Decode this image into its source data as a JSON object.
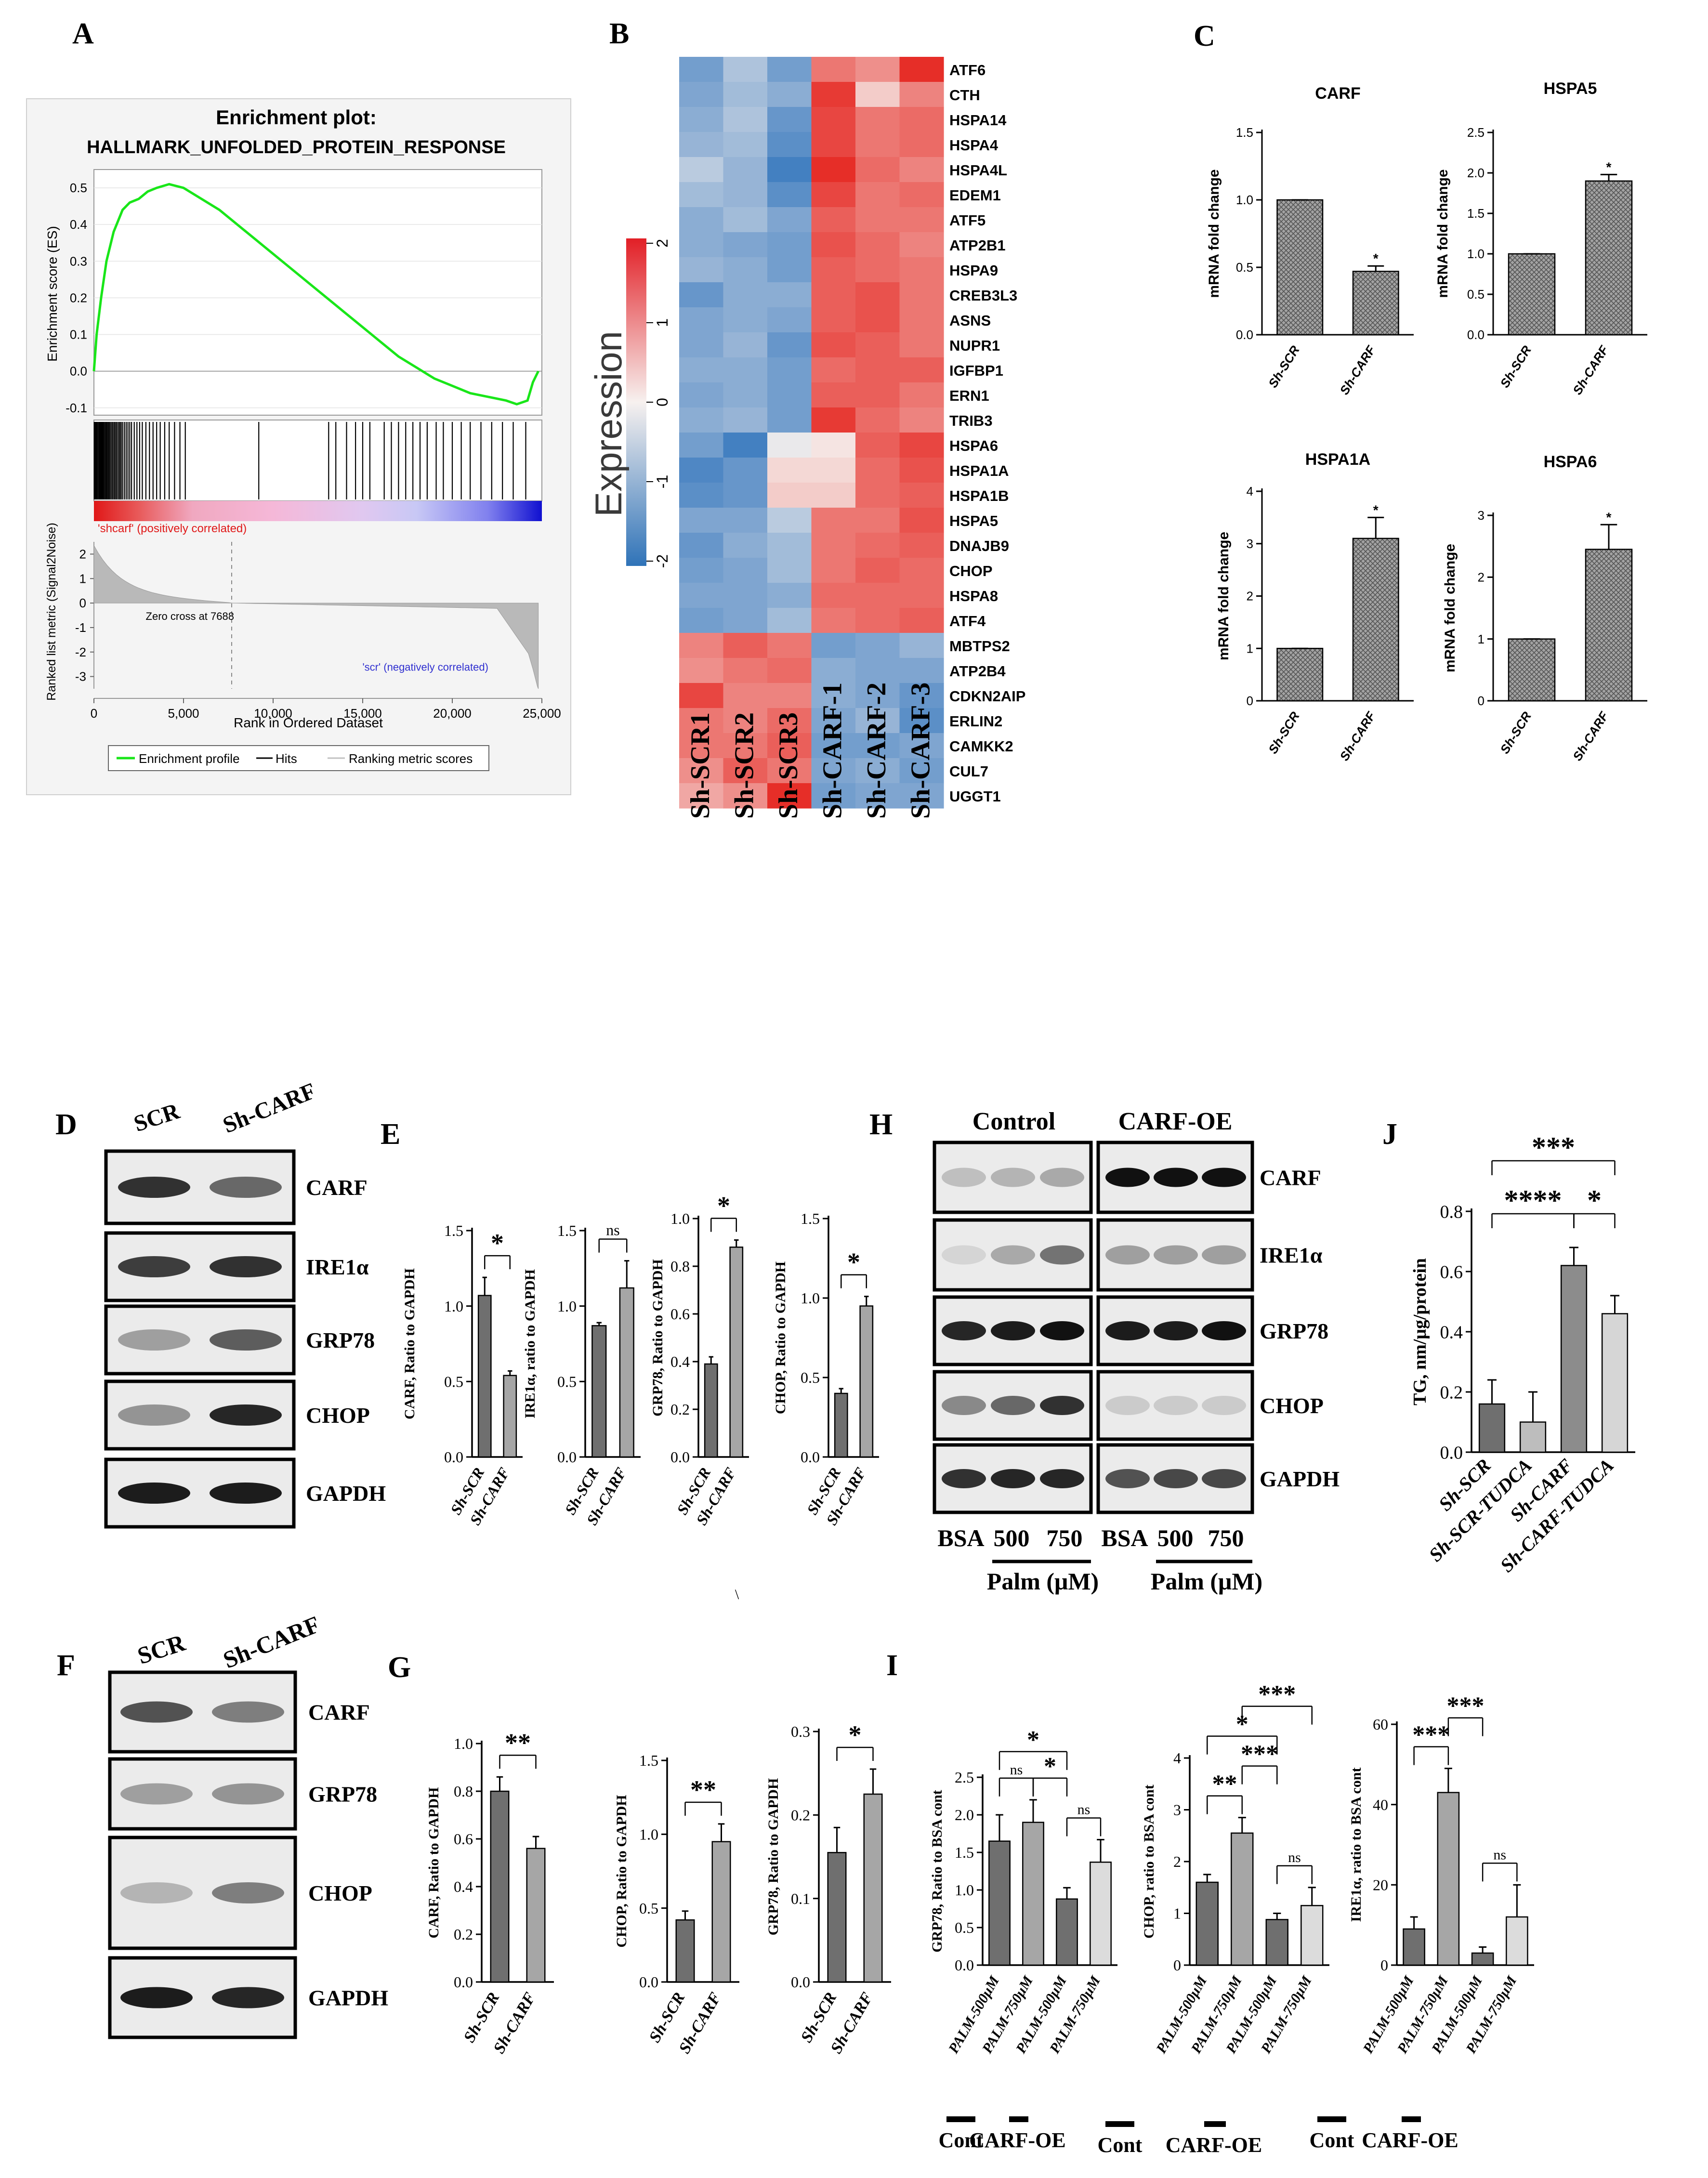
{
  "panel_letters": {
    "A": "A",
    "B": "B",
    "C": "C",
    "D": "D",
    "E": "E",
    "F": "F",
    "G": "G",
    "H": "H",
    "I": "I",
    "J": "J"
  },
  "colors": {
    "bar_dark": "#6b6b6b",
    "bar_mid": "#9a9a9a",
    "bar_light": "#d7d7d7",
    "gsea_line": "#19e619",
    "heat_red": "#e8332a",
    "heat_blue": "#3f7fc0",
    "heat_white": "#f6f0ee"
  },
  "chart_data": [
    {
      "panel": "A",
      "type": "line",
      "title": "Enrichment plot:",
      "subtitle": "HALLMARK_UNFOLDED_PROTEIN_RESPONSE",
      "ylabel": "Enrichment score (ES)",
      "ylabel2": "Ranked list metric (Signal2Noise)",
      "xlabel": "Rank in Ordered Dataset",
      "y_ticks": [
        "0.5",
        "0.4",
        "0.3",
        "0.2",
        "0.1",
        "0.0",
        "-0.1"
      ],
      "y2_ticks": [
        "2",
        "1",
        "0",
        "-1",
        "-2",
        "-3"
      ],
      "x_ticks": [
        "0",
        "5,000",
        "10,000",
        "15,000",
        "20,000",
        "25,000"
      ],
      "xlim": [
        0,
        25000
      ],
      "ylim": [
        -0.12,
        0.55
      ],
      "es_x": [
        0,
        150,
        400,
        700,
        1100,
        1600,
        2000,
        2500,
        3000,
        3500,
        4200,
        5000,
        6000,
        7000,
        8000,
        9000,
        10000,
        11000,
        12000,
        13000,
        14000,
        15000,
        16000,
        17000,
        18000,
        19000,
        20000,
        21000,
        22000,
        23000,
        23600,
        24200,
        24500,
        24800
      ],
      "es_y": [
        0,
        0.1,
        0.2,
        0.3,
        0.38,
        0.44,
        0.46,
        0.47,
        0.49,
        0.5,
        0.51,
        0.5,
        0.47,
        0.44,
        0.4,
        0.36,
        0.32,
        0.28,
        0.24,
        0.2,
        0.16,
        0.12,
        0.08,
        0.04,
        0.01,
        -0.02,
        -0.04,
        -0.06,
        -0.07,
        -0.08,
        -0.09,
        -0.08,
        -0.03,
        0.0
      ],
      "annotation_pos": "'shcarf' (positively correlated)",
      "annotation_neg": "'scr' (negatively correlated)",
      "annotation_zero": "Zero cross at 7688",
      "legend": [
        "Enrichment profile",
        "Hits",
        "Ranking metric scores"
      ]
    },
    {
      "panel": "B",
      "type": "heatmap",
      "columns": [
        "Sh-SCR1",
        "Sh-SCR2",
        "Sh-SCR3",
        "Sh-CARF-1",
        "Sh-CARF-2",
        "Sh-CARF-3"
      ],
      "rows": [
        "ATF6",
        "CTH",
        "HSPA14",
        "HSPA4",
        "HSPA4L",
        "EDEM1",
        "ATF5",
        "ATP2B1",
        "HSPA9",
        "CREB3L3",
        "ASNS",
        "NUPR1",
        "IGFBP1",
        "ERN1",
        "TRIB3",
        "HSPA6",
        "HSPA1A",
        "HSPA1B",
        "HSPA5",
        "DNAJB9",
        "CHOP",
        "HSPA8",
        "ATF4",
        "MBTPS2",
        "ATP2B4",
        "CDKN2AIP",
        "ERLIN2",
        "CAMKK2",
        "CUL7",
        "UGGT1"
      ],
      "legend_title": "Expression",
      "legend_ticks": [
        "2",
        "1",
        "0",
        "-1",
        "-2"
      ],
      "values": [
        [
          -1.1,
          -0.6,
          -1.1,
          1.0,
          0.8,
          1.6
        ],
        [
          -1.0,
          -0.7,
          -0.9,
          1.5,
          0.3,
          0.9
        ],
        [
          -0.9,
          -0.6,
          -1.2,
          1.4,
          1.0,
          1.1
        ],
        [
          -0.8,
          -0.7,
          -1.3,
          1.4,
          1.0,
          1.1
        ],
        [
          -0.5,
          -0.8,
          -1.5,
          1.6,
          1.1,
          0.9
        ],
        [
          -0.7,
          -0.8,
          -1.3,
          1.4,
          1.0,
          1.1
        ],
        [
          -0.9,
          -0.7,
          -1.0,
          1.2,
          1.0,
          1.0
        ],
        [
          -0.9,
          -1.0,
          -1.1,
          1.3,
          1.1,
          0.9
        ],
        [
          -0.8,
          -0.9,
          -1.1,
          1.2,
          1.1,
          1.0
        ],
        [
          -1.2,
          -0.9,
          -0.9,
          1.2,
          1.3,
          1.0
        ],
        [
          -1.0,
          -0.9,
          -1.0,
          1.2,
          1.3,
          1.0
        ],
        [
          -1.0,
          -0.8,
          -1.2,
          1.3,
          1.2,
          1.0
        ],
        [
          -0.9,
          -0.9,
          -1.1,
          1.1,
          1.2,
          1.2
        ],
        [
          -1.0,
          -0.9,
          -1.1,
          1.2,
          1.2,
          1.0
        ],
        [
          -0.9,
          -0.8,
          -1.1,
          1.5,
          1.1,
          0.9
        ],
        [
          -1.1,
          -1.5,
          -0.1,
          0.1,
          1.2,
          1.4
        ],
        [
          -1.4,
          -1.2,
          0.2,
          0.2,
          1.1,
          1.3
        ],
        [
          -1.3,
          -1.2,
          0.3,
          0.3,
          1.1,
          1.2
        ],
        [
          -1.0,
          -1.0,
          -0.5,
          1.0,
          1.0,
          1.3
        ],
        [
          -1.2,
          -0.9,
          -0.7,
          1.0,
          1.1,
          1.2
        ],
        [
          -1.1,
          -1.0,
          -0.7,
          1.0,
          1.2,
          1.1
        ],
        [
          -1.0,
          -1.0,
          -0.9,
          1.1,
          1.1,
          1.1
        ],
        [
          -1.1,
          -1.0,
          -0.7,
          1.0,
          1.1,
          1.2
        ],
        [
          0.9,
          1.2,
          1.0,
          -1.1,
          -1.0,
          -0.8
        ],
        [
          0.8,
          1.0,
          1.1,
          -0.9,
          -1.0,
          -1.0
        ],
        [
          1.4,
          0.9,
          0.9,
          -0.9,
          -1.0,
          -1.2
        ],
        [
          1.0,
          0.9,
          1.1,
          -1.0,
          -0.8,
          -1.3
        ],
        [
          1.0,
          1.0,
          1.2,
          -1.1,
          -1.1,
          -1.0
        ],
        [
          0.8,
          1.2,
          1.0,
          -1.0,
          -0.9,
          -1.1
        ],
        [
          0.6,
          0.8,
          1.6,
          -1.1,
          -1.0,
          -1.0
        ]
      ]
    },
    {
      "panel": "C",
      "type": "bar",
      "title": "CARF",
      "ylabel": "mRNA fold change",
      "categories": [
        "Sh-SCR",
        "Sh-CARF"
      ],
      "values": [
        1.0,
        0.47
      ],
      "errors": [
        0.0,
        0.04
      ],
      "ylim": [
        0,
        1.5
      ],
      "yticks": [
        "0.0",
        "0.5",
        "1.0",
        "1.5"
      ],
      "sig": [
        "",
        "*"
      ]
    },
    {
      "panel": "C",
      "type": "bar",
      "title": "HSPA5",
      "ylabel": "mRNA fold change",
      "categories": [
        "Sh-SCR",
        "Sh-CARF"
      ],
      "values": [
        1.0,
        1.9
      ],
      "errors": [
        0.0,
        0.08
      ],
      "ylim": [
        0,
        2.5
      ],
      "yticks": [
        "0.0",
        "0.5",
        "1.0",
        "1.5",
        "2.0",
        "2.5"
      ],
      "sig": [
        "",
        "*"
      ]
    },
    {
      "panel": "C",
      "type": "bar",
      "title": "HSPA1A",
      "ylabel": "mRNA fold change",
      "categories": [
        "Sh-SCR",
        "Sh-CARF"
      ],
      "values": [
        1.0,
        3.1
      ],
      "errors": [
        0.0,
        0.4
      ],
      "ylim": [
        0,
        4
      ],
      "yticks": [
        "0",
        "1",
        "2",
        "3",
        "4"
      ],
      "sig": [
        "",
        "*"
      ]
    },
    {
      "panel": "C",
      "type": "bar",
      "title": "HSPA6",
      "ylabel": "mRNA fold change",
      "categories": [
        "Sh-SCR",
        "Sh-CARF"
      ],
      "values": [
        1.0,
        2.45
      ],
      "errors": [
        0.0,
        0.4
      ],
      "ylim": [
        0,
        3
      ],
      "yticks": [
        "0",
        "1",
        "2",
        "3"
      ],
      "sig": [
        "",
        "*"
      ]
    },
    {
      "panel": "E",
      "type": "bar",
      "ylabel": "CARF, Ratio to GAPDH",
      "categories": [
        "Sh-SCR",
        "Sh-CARF"
      ],
      "values": [
        1.07,
        0.54
      ],
      "errors": [
        0.12,
        0.03
      ],
      "ylim": [
        0,
        1.5
      ],
      "yticks": [
        "0.0",
        "0.5",
        "1.0",
        "1.5"
      ],
      "comparisons": [
        {
          "a": 0,
          "b": 1,
          "label": "*"
        }
      ]
    },
    {
      "panel": "E",
      "type": "bar",
      "ylabel": "IRE1α, ratio to GAPDH",
      "categories": [
        "Sh-SCR",
        "Sh-CARF"
      ],
      "values": [
        0.87,
        1.12
      ],
      "errors": [
        0.02,
        0.18
      ],
      "ylim": [
        0,
        1.5
      ],
      "yticks": [
        "0.0",
        "0.5",
        "1.0",
        "1.5"
      ],
      "comparisons": [
        {
          "a": 0,
          "b": 1,
          "label": "ns"
        }
      ]
    },
    {
      "panel": "E",
      "type": "bar",
      "ylabel": "GRP78, Ratio to GAPDH",
      "categories": [
        "Sh-SCR",
        "Sh-CARF"
      ],
      "values": [
        0.39,
        0.88
      ],
      "errors": [
        0.03,
        0.03
      ],
      "ylim": [
        0,
        1.0
      ],
      "yticks": [
        "0.0",
        "0.2",
        "0.4",
        "0.6",
        "0.8",
        "1.0"
      ],
      "comparisons": [
        {
          "a": 0,
          "b": 1,
          "label": "*"
        }
      ]
    },
    {
      "panel": "E",
      "type": "bar",
      "ylabel": "CHOP, Ratio to GAPDH",
      "categories": [
        "Sh-SCR",
        "Sh-CARF"
      ],
      "values": [
        0.4,
        0.95
      ],
      "errors": [
        0.03,
        0.06
      ],
      "ylim": [
        0,
        1.5
      ],
      "yticks": [
        "0.0",
        "0.5",
        "1.0",
        "1.5"
      ],
      "comparisons": [
        {
          "a": 0,
          "b": 1,
          "label": "*"
        }
      ]
    },
    {
      "panel": "G",
      "type": "bar",
      "ylabel": "CARF, Ratio to GAPDH",
      "categories": [
        "Sh-SCR",
        "Sh-CARF"
      ],
      "values": [
        0.8,
        0.56
      ],
      "errors": [
        0.06,
        0.05
      ],
      "ylim": [
        0,
        1.0
      ],
      "yticks": [
        "0.0",
        "0.2",
        "0.4",
        "0.6",
        "0.8",
        "1.0"
      ],
      "comparisons": [
        {
          "a": 0,
          "b": 1,
          "label": "**"
        }
      ]
    },
    {
      "panel": "G",
      "type": "bar",
      "ylabel": "CHOP, Ratio to GAPDH",
      "categories": [
        "Sh-SCR",
        "Sh-CARF"
      ],
      "values": [
        0.42,
        0.95
      ],
      "errors": [
        0.06,
        0.12
      ],
      "ylim": [
        0,
        1.5
      ],
      "yticks": [
        "0.0",
        "0.5",
        "1.0",
        "1.5"
      ],
      "comparisons": [
        {
          "a": 0,
          "b": 1,
          "label": "**"
        }
      ]
    },
    {
      "panel": "G",
      "type": "bar",
      "ylabel": "GRP78, Ratio to GAPDH",
      "categories": [
        "Sh-SCR",
        "Sh-CARF"
      ],
      "values": [
        0.155,
        0.225
      ],
      "errors": [
        0.03,
        0.03
      ],
      "ylim": [
        0,
        0.3
      ],
      "yticks": [
        "0.0",
        "0.1",
        "0.2",
        "0.3"
      ],
      "comparisons": [
        {
          "a": 0,
          "b": 1,
          "label": "*"
        }
      ]
    },
    {
      "panel": "I",
      "type": "bar",
      "ylabel": "GRP78, Ratio to BSA cont",
      "categories": [
        "PALM-500μM",
        "PALM-750μM",
        "PALM-500μM",
        "PALM-750μM"
      ],
      "values": [
        1.65,
        1.9,
        0.88,
        1.37
      ],
      "errors": [
        0.35,
        0.3,
        0.15,
        0.3
      ],
      "ylim": [
        0,
        2.5
      ],
      "yticks": [
        "0.0",
        "0.5",
        "1.0",
        "1.5",
        "2.0",
        "2.5"
      ],
      "groups": [
        "Cont",
        "CARF-OE"
      ],
      "comparisons": [
        {
          "a": 0,
          "b": 1,
          "label": "ns",
          "level": 0
        },
        {
          "a": 1,
          "b": 2,
          "label": "*",
          "level": 0
        },
        {
          "a": 2,
          "b": 3,
          "label": "ns",
          "level": 0
        },
        {
          "a": 0,
          "b": 2,
          "label": "*",
          "level": 1
        }
      ]
    },
    {
      "panel": "I",
      "type": "bar",
      "ylabel": "CHOP, ratio to BSA cont",
      "categories": [
        "PALM-500μM",
        "PALM-750μM",
        "PALM-500μM",
        "PALM-750μM"
      ],
      "values": [
        1.6,
        2.55,
        0.88,
        1.15
      ],
      "errors": [
        0.15,
        0.3,
        0.12,
        0.35
      ],
      "ylim": [
        0,
        4
      ],
      "yticks": [
        "0",
        "1",
        "2",
        "3",
        "4"
      ],
      "groups": [
        "Cont",
        "CARF-OE"
      ],
      "comparisons": [
        {
          "a": 0,
          "b": 1,
          "label": "**",
          "level": 0
        },
        {
          "a": 2,
          "b": 3,
          "label": "ns",
          "level": 0
        },
        {
          "a": 1,
          "b": 2,
          "label": "***",
          "level": 1
        },
        {
          "a": 0,
          "b": 2,
          "label": "*",
          "level": 2
        },
        {
          "a": 1,
          "b": 3,
          "label": "***",
          "level": 3
        }
      ]
    },
    {
      "panel": "I",
      "type": "bar",
      "ylabel": "IRE1α, ratio to BSA cont",
      "categories": [
        "PALM-500μM",
        "PALM-750μM",
        "PALM-500μM",
        "PALM-750μM"
      ],
      "values": [
        9,
        43,
        3,
        12
      ],
      "errors": [
        3,
        6,
        1.5,
        8
      ],
      "ylim": [
        0,
        60
      ],
      "yticks": [
        "0",
        "20",
        "40",
        "60"
      ],
      "groups": [
        "Cont",
        "CARF-OE"
      ],
      "comparisons": [
        {
          "a": 0,
          "b": 1,
          "label": "***",
          "level": 0
        },
        {
          "a": 2,
          "b": 3,
          "label": "ns",
          "level": 0
        },
        {
          "a": 1,
          "b": 2,
          "label": "***",
          "level": 1
        }
      ]
    },
    {
      "panel": "J",
      "type": "bar",
      "ylabel": "TG, nm/μg/protein",
      "categories": [
        "Sh-SCR",
        "Sh-SCR-TUDCA",
        "Sh-CARF",
        "Sh-CARF-TUDCA"
      ],
      "values": [
        0.16,
        0.1,
        0.62,
        0.46
      ],
      "errors": [
        0.08,
        0.1,
        0.06,
        0.06
      ],
      "ylim": [
        0,
        0.8
      ],
      "yticks": [
        "0.0",
        "0.2",
        "0.4",
        "0.6",
        "0.8"
      ],
      "comparisons": [
        {
          "a": 2,
          "b": 3,
          "label": "*",
          "level": 0
        },
        {
          "a": 0,
          "b": 2,
          "label": "****",
          "level": 0
        },
        {
          "a": 0,
          "b": 3,
          "label": "***",
          "level": 1
        }
      ]
    }
  ],
  "blots": {
    "D": {
      "headers": [
        "SCR",
        "Sh-CARF"
      ],
      "rows": [
        "CARF",
        "IRE1α",
        "GRP78",
        "CHOP",
        "GAPDH"
      ]
    },
    "F": {
      "headers": [
        "SCR",
        "Sh-CARF"
      ],
      "rows": [
        "CARF",
        "GRP78",
        "CHOP",
        "GAPDH"
      ]
    },
    "H": {
      "groups": [
        "Control",
        "CARF-OE"
      ],
      "rows": [
        "CARF",
        "IRE1α",
        "GRP78",
        "CHOP",
        "GAPDH"
      ],
      "lanes": [
        "BSA",
        "500",
        "750",
        "BSA",
        "500",
        "750"
      ],
      "treatment": "Palm (μM)"
    }
  }
}
